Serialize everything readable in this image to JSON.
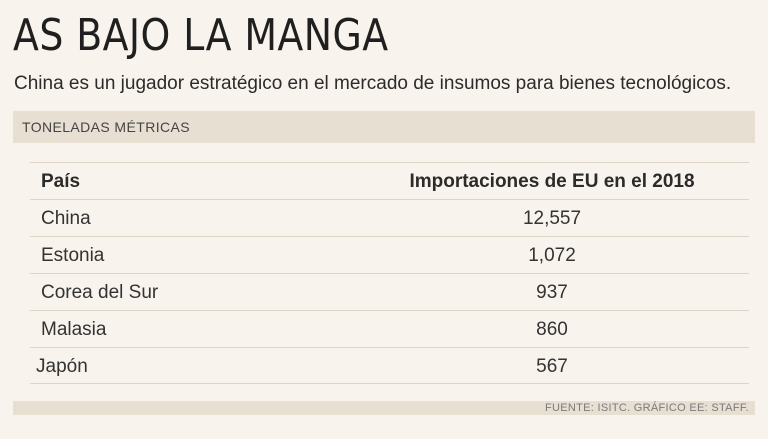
{
  "title": "AS BAJO LA MANGA",
  "subtitle": "China es un jugador estratégico en el mercado de insumos para bienes tecnológicos.",
  "units": "TONELADAS MÉTRICAS",
  "source": "FUENTE: ISITC. GRÁFICO EE: STAFF.",
  "chart_data": {
    "type": "table",
    "columns": [
      "País",
      "Importaciones de EU en el 2018"
    ],
    "rows": [
      {
        "country": "China",
        "value": "12,557"
      },
      {
        "country": "Estonia",
        "value": "1,072"
      },
      {
        "country": "Corea del Sur",
        "value": "937"
      },
      {
        "country": "Malasia",
        "value": "860"
      },
      {
        "country": "Japón",
        "value": "567"
      }
    ]
  }
}
